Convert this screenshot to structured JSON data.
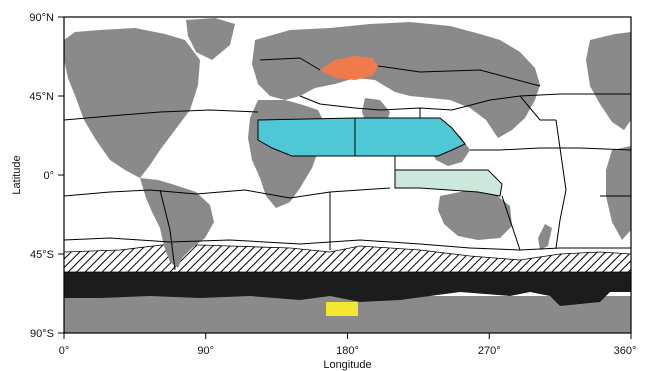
{
  "map": {
    "x_axis": {
      "label": "Longitude",
      "ticks": [
        "0°",
        "90°",
        "180°",
        "270°",
        "360°"
      ]
    },
    "y_axis": {
      "label": "Latitude",
      "ticks": [
        "90°N",
        "45°N",
        "0°",
        "45°S",
        "90°S"
      ]
    },
    "colors": {
      "land": "#8a8a8a",
      "ocean": "#ffffff",
      "north_pacific_region": "#4fc8d6",
      "equatorial_pacific_region": "#cce8dc",
      "okhotsk_region": "#f07a4a",
      "ross_sea_region": "#f2e830",
      "southern_ocean_band": "#1c1c1c",
      "hatched_band": "#000000",
      "region_borders": "#000000"
    }
  }
}
